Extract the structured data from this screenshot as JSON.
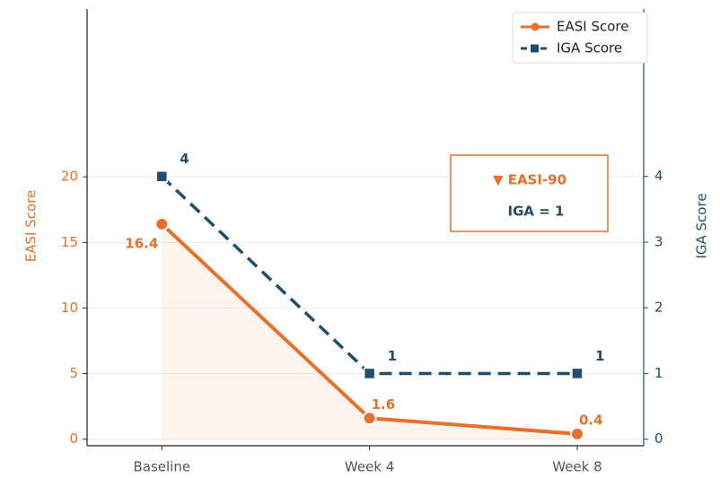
{
  "chart_data": {
    "type": "line",
    "categories": [
      "Baseline",
      "Week 4",
      "Week 8"
    ],
    "series": [
      {
        "name": "EASI Score",
        "color": "#e8702a",
        "values": [
          16.4,
          1.6,
          0.4
        ]
      },
      {
        "name": "IGA Score",
        "color": "#1f4e6e",
        "values": [
          4,
          1,
          1
        ],
        "axis": "y2"
      }
    ],
    "ylabel": "EASI Score",
    "y2label": "IGA Score",
    "ylim": [
      -0.5,
      32.8
    ],
    "yticks": [
      0,
      5,
      10,
      15,
      20
    ],
    "y2lim": [
      -0.1,
      6.55
    ],
    "y2ticks": [
      0,
      1,
      2,
      3,
      4
    ],
    "annotations": [
      "▼ EASI-90",
      "IGA = 1"
    ],
    "grid": true,
    "legend": "upper right"
  }
}
